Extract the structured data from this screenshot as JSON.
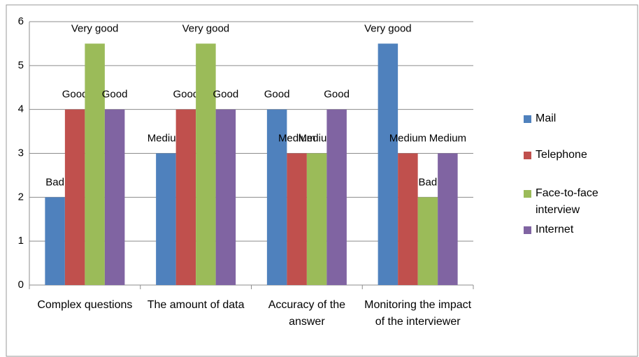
{
  "chart_data": {
    "type": "bar",
    "categories": [
      "Complex questions",
      "The amount of data",
      "Accuracy of the answer",
      "Monitoring the impact of the interviewer"
    ],
    "series": [
      {
        "name": "Mail",
        "color": "#4f81bd",
        "values": [
          2,
          3,
          4,
          5.5
        ],
        "value_labels": [
          "Bad",
          "Medium",
          "Good",
          "Very good"
        ]
      },
      {
        "name": "Telephone",
        "color": "#c0504d",
        "values": [
          4,
          4,
          3,
          3
        ],
        "value_labels": [
          "Good",
          "Good",
          "Medium",
          "Medium"
        ]
      },
      {
        "name": "Face-to-face interview",
        "color": "#9bbb59",
        "values": [
          5.5,
          5.5,
          3,
          2
        ],
        "value_labels": [
          "Very good",
          "Very good",
          "Medium",
          "Bad"
        ]
      },
      {
        "name": "Internet",
        "color": "#8064a2",
        "values": [
          4,
          4,
          4,
          3
        ],
        "value_labels": [
          "Good",
          "Good",
          "Good",
          "Medium"
        ]
      }
    ],
    "ylim": [
      0,
      6
    ],
    "yticks": [
      0,
      1,
      2,
      3,
      4,
      5,
      6
    ],
    "grid": true,
    "legend": "right"
  }
}
